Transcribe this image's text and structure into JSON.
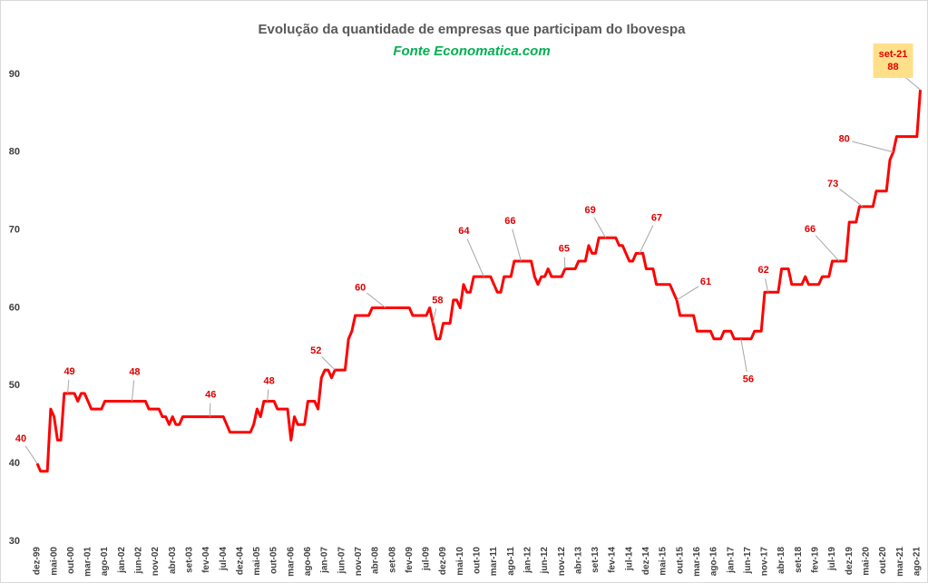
{
  "chart_data": {
    "type": "line",
    "title": "Evolução da quantidade de empresas que participam do Ibovespa",
    "subtitle": "Fonte Economatica.com",
    "color": "#ff0000",
    "ylim": [
      30,
      95
    ],
    "yticks": [
      30,
      40,
      50,
      60,
      70,
      80,
      90
    ],
    "annotation": "set-21",
    "categories": [
      "dez-99",
      null,
      null,
      null,
      null,
      "mai-00",
      null,
      null,
      null,
      null,
      "out-00",
      null,
      null,
      null,
      null,
      "mar-01",
      null,
      null,
      null,
      null,
      "ago-01",
      null,
      null,
      null,
      null,
      "jan-02",
      null,
      null,
      null,
      null,
      "jun-02",
      null,
      null,
      null,
      null,
      "nov-02",
      null,
      null,
      null,
      null,
      "abr-03",
      null,
      null,
      null,
      null,
      "set-03",
      null,
      null,
      null,
      null,
      "fev-04",
      null,
      null,
      null,
      null,
      "jul-04",
      null,
      null,
      null,
      null,
      "dez-04",
      null,
      null,
      null,
      null,
      "mai-05",
      null,
      null,
      null,
      null,
      "out-05",
      null,
      null,
      null,
      null,
      "mar-06",
      null,
      null,
      null,
      null,
      "ago-06",
      null,
      null,
      null,
      null,
      "jan-07",
      null,
      null,
      null,
      null,
      "jun-07",
      null,
      null,
      null,
      null,
      "nov-07",
      null,
      null,
      null,
      null,
      "abr-08",
      null,
      null,
      null,
      null,
      "set-08",
      null,
      null,
      null,
      null,
      "fev-09",
      null,
      null,
      null,
      null,
      "jul-09",
      null,
      null,
      null,
      null,
      "dez-09",
      null,
      null,
      null,
      null,
      "mai-10",
      null,
      null,
      null,
      null,
      "out-10",
      null,
      null,
      null,
      null,
      "mar-11",
      null,
      null,
      null,
      null,
      "ago-11",
      null,
      null,
      null,
      null,
      "jan-12",
      null,
      null,
      null,
      null,
      "jun-12",
      null,
      null,
      null,
      null,
      "nov-12",
      null,
      null,
      null,
      null,
      "abr-13",
      null,
      null,
      null,
      null,
      "set-13",
      null,
      null,
      null,
      null,
      "fev-14",
      null,
      null,
      null,
      null,
      "jul-14",
      null,
      null,
      null,
      null,
      "dez-14",
      null,
      null,
      null,
      null,
      "mai-15",
      null,
      null,
      null,
      null,
      "out-15",
      null,
      null,
      null,
      null,
      "mar-16",
      null,
      null,
      null,
      null,
      "ago-16",
      null,
      null,
      null,
      null,
      "jan-17",
      null,
      null,
      null,
      null,
      "jun-17",
      null,
      null,
      null,
      null,
      "nov-17",
      null,
      null,
      null,
      null,
      "abr-18",
      null,
      null,
      null,
      null,
      "set-18",
      null,
      null,
      null,
      null,
      "fev-19",
      null,
      null,
      null,
      null,
      "jul-19",
      null,
      null,
      null,
      null,
      "dez-19",
      null,
      null,
      null,
      null,
      "mai-20",
      null,
      null,
      null,
      null,
      "out-20",
      null,
      null,
      null,
      null,
      "mar-21",
      null,
      null,
      null,
      null,
      "ago-21",
      null
    ],
    "values": [
      40,
      39,
      39,
      39,
      47,
      46,
      43,
      43,
      49,
      49,
      49,
      49,
      48,
      49,
      49,
      48,
      47,
      47,
      47,
      47,
      48,
      48,
      48,
      48,
      48,
      48,
      48,
      48,
      48,
      48,
      48,
      48,
      48,
      47,
      47,
      47,
      47,
      46,
      46,
      45,
      46,
      45,
      45,
      46,
      46,
      46,
      46,
      46,
      46,
      46,
      46,
      46,
      46,
      46,
      46,
      46,
      45,
      44,
      44,
      44,
      44,
      44,
      44,
      44,
      45,
      47,
      46,
      48,
      48,
      48,
      48,
      47,
      47,
      47,
      47,
      43,
      46,
      45,
      45,
      45,
      48,
      48,
      48,
      47,
      51,
      52,
      52,
      51,
      52,
      52,
      52,
      52,
      56,
      57,
      59,
      59,
      59,
      59,
      59,
      60,
      60,
      60,
      60,
      60,
      60,
      60,
      60,
      60,
      60,
      60,
      60,
      59,
      59,
      59,
      59,
      59,
      60,
      58,
      56,
      56,
      58,
      58,
      58,
      61,
      61,
      60,
      63,
      62,
      62,
      64,
      64,
      64,
      64,
      64,
      64,
      63,
      62,
      62,
      64,
      64,
      64,
      66,
      66,
      66,
      66,
      66,
      66,
      64,
      63,
      64,
      64,
      65,
      64,
      64,
      64,
      64,
      65,
      65,
      65,
      65,
      66,
      66,
      66,
      68,
      67,
      67,
      69,
      69,
      69,
      69,
      69,
      69,
      68,
      68,
      67,
      66,
      66,
      67,
      67,
      67,
      65,
      65,
      65,
      63,
      63,
      63,
      63,
      63,
      62,
      61,
      59,
      59,
      59,
      59,
      59,
      57,
      57,
      57,
      57,
      57,
      56,
      56,
      56,
      57,
      57,
      57,
      56,
      56,
      56,
      56,
      56,
      56,
      57,
      57,
      57,
      62,
      62,
      62,
      62,
      62,
      65,
      65,
      65,
      63,
      63,
      63,
      63,
      64,
      63,
      63,
      63,
      63,
      64,
      64,
      64,
      66,
      66,
      66,
      66,
      66,
      71,
      71,
      71,
      73,
      73,
      73,
      73,
      73,
      75,
      75,
      75,
      75,
      79,
      80,
      82,
      82,
      82,
      82,
      82,
      82,
      82,
      88
    ]
  }
}
